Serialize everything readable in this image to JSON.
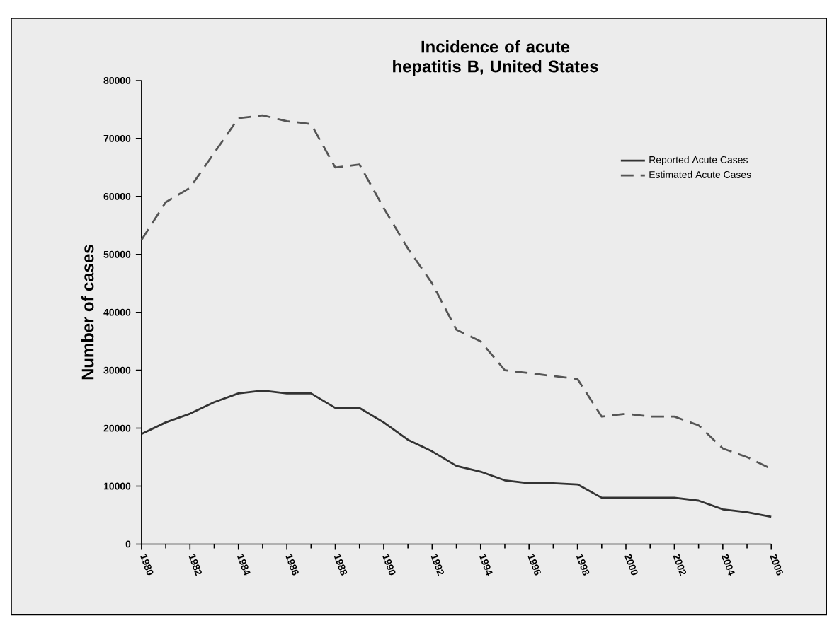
{
  "chart_data": {
    "type": "line",
    "title": "Incidence of acute hepatitis B, United States",
    "ylabel": "Number of cases",
    "x": [
      1980,
      1981,
      1982,
      1983,
      1984,
      1985,
      1986,
      1987,
      1988,
      1989,
      1990,
      1991,
      1992,
      1993,
      1994,
      1995,
      1996,
      1997,
      1998,
      1999,
      2000,
      2001,
      2002,
      2003,
      2004,
      2005,
      2006
    ],
    "series": [
      {
        "name": "Reported Acute Cases",
        "color": "#333333",
        "line_style": "solid",
        "values": [
          19000,
          21000,
          22500,
          24500,
          26000,
          26500,
          26000,
          26000,
          23500,
          23500,
          21000,
          18000,
          16000,
          13500,
          12500,
          11000,
          10500,
          10500,
          10300,
          8000,
          8000,
          8000,
          8000,
          7500,
          6000,
          5500,
          4700
        ]
      },
      {
        "name": "Estimated Acute Cases",
        "color": "#555555",
        "line_style": "dashed",
        "values": [
          52500,
          59000,
          61500,
          67500,
          73500,
          74000,
          73000,
          72500,
          65000,
          65500,
          58000,
          51000,
          45000,
          37000,
          35000,
          30000,
          29500,
          29000,
          28500,
          22000,
          22500,
          22000,
          22000,
          20500,
          16500,
          15000,
          13000
        ]
      }
    ],
    "xlim": [
      1980,
      2006
    ],
    "xticks": [
      1980,
      1982,
      1984,
      1986,
      1988,
      1990,
      1992,
      1994,
      1996,
      1998,
      2000,
      2002,
      2004,
      2006
    ],
    "ylim": [
      0,
      80000
    ],
    "yticks": [
      0,
      10000,
      20000,
      30000,
      40000,
      50000,
      60000,
      70000,
      80000
    ],
    "grid": false,
    "legend": "top right",
    "marker": "none"
  }
}
